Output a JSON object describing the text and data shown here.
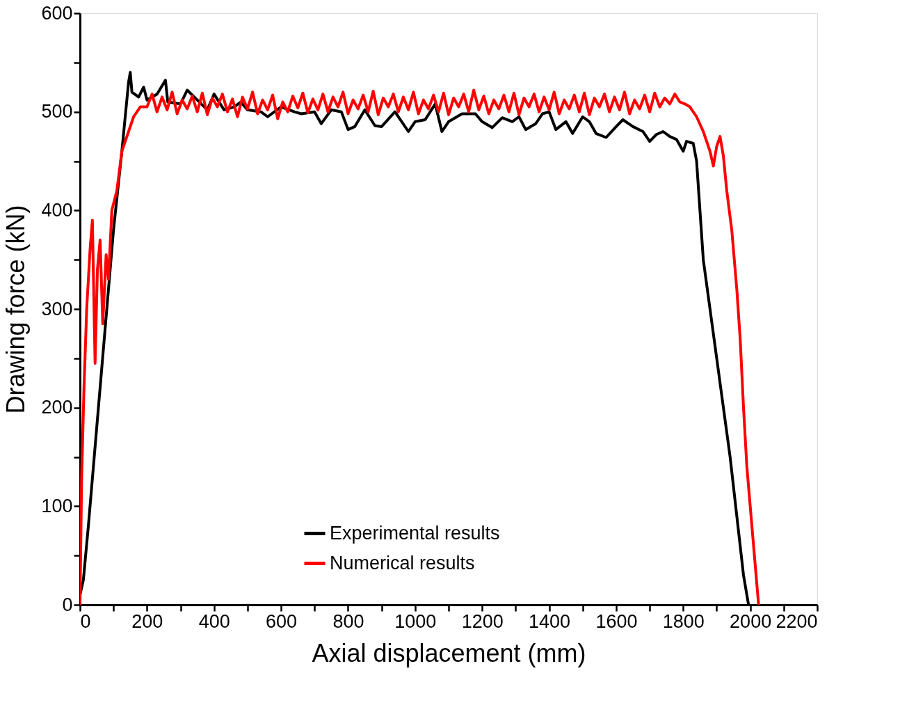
{
  "chart_data": {
    "type": "line",
    "xlabel": "Axial displacement (mm)",
    "ylabel": "Drawing force (kN)",
    "xlim": [
      0,
      2200
    ],
    "ylim": [
      0,
      600
    ],
    "xticks": [
      0,
      {
        "value": 100,
        "label": null
      },
      200,
      {
        "value": 300,
        "label": null
      },
      400,
      {
        "value": 500,
        "label": null
      },
      600,
      {
        "value": 700,
        "label": null
      },
      800,
      {
        "value": 900,
        "label": null
      },
      1000,
      {
        "value": 1100,
        "label": null
      },
      1200,
      {
        "value": 1300,
        "label": null
      },
      1400,
      {
        "value": 1500,
        "label": null
      },
      1600,
      {
        "value": 1700,
        "label": null
      },
      1800,
      {
        "value": 1900,
        "label": null
      },
      2000,
      {
        "value": 2100,
        "label": null
      },
      2200
    ],
    "yticks": [
      0,
      {
        "value": 50,
        "label": null
      },
      100,
      {
        "value": 150,
        "label": null
      },
      200,
      {
        "value": 250,
        "label": null
      },
      300,
      {
        "value": 350,
        "label": null
      },
      400,
      {
        "value": 450,
        "label": null
      },
      500,
      {
        "value": 550,
        "label": null
      },
      600
    ],
    "grid": false,
    "legend": "bottom",
    "line_style": "solid",
    "marker": "none",
    "series": [
      {
        "name": "Experimental results",
        "color": "#000000",
        "x": [
          0,
          10,
          25,
          50,
          75,
          100,
          125,
          145,
          150,
          155,
          175,
          190,
          200,
          230,
          255,
          262,
          300,
          320,
          350,
          380,
          400,
          430,
          460,
          480,
          500,
          540,
          560,
          600,
          640,
          660,
          700,
          720,
          750,
          780,
          800,
          820,
          850,
          880,
          900,
          940,
          980,
          1000,
          1030,
          1060,
          1080,
          1100,
          1140,
          1180,
          1200,
          1230,
          1260,
          1290,
          1310,
          1330,
          1360,
          1380,
          1400,
          1420,
          1450,
          1470,
          1500,
          1520,
          1540,
          1570,
          1600,
          1620,
          1650,
          1680,
          1700,
          1720,
          1740,
          1760,
          1780,
          1800,
          1810,
          1830,
          1840,
          1850,
          1860,
          1880,
          1900,
          1920,
          1940,
          1960,
          1980,
          1990,
          1995
        ],
        "values": [
          10,
          25,
          80,
          180,
          280,
          380,
          460,
          530,
          540,
          520,
          515,
          525,
          512,
          518,
          532,
          510,
          508,
          522,
          512,
          502,
          518,
          502,
          505,
          510,
          502,
          500,
          495,
          505,
          500,
          498,
          500,
          488,
          502,
          500,
          482,
          485,
          502,
          486,
          485,
          500,
          480,
          490,
          492,
          508,
          480,
          490,
          498,
          498,
          490,
          484,
          494,
          490,
          495,
          482,
          488,
          498,
          500,
          482,
          490,
          478,
          495,
          490,
          478,
          474,
          485,
          492,
          485,
          480,
          470,
          477,
          480,
          475,
          472,
          460,
          470,
          468,
          450,
          400,
          350,
          300,
          250,
          200,
          150,
          90,
          30,
          10,
          0
        ]
      },
      {
        "name": "Numerical results",
        "color": "#ff0000",
        "x": [
          0,
          5,
          12,
          20,
          30,
          37,
          45,
          52,
          60,
          68,
          78,
          85,
          95,
          110,
          125,
          145,
          160,
          180,
          200,
          215,
          230,
          245,
          260,
          275,
          290,
          305,
          320,
          335,
          350,
          365,
          380,
          395,
          410,
          425,
          440,
          455,
          470,
          485,
          500,
          515,
          530,
          545,
          560,
          575,
          590,
          605,
          620,
          635,
          650,
          665,
          680,
          695,
          710,
          725,
          740,
          755,
          770,
          785,
          800,
          815,
          830,
          845,
          860,
          875,
          890,
          905,
          920,
          935,
          950,
          965,
          980,
          995,
          1010,
          1025,
          1040,
          1055,
          1070,
          1085,
          1100,
          1115,
          1130,
          1145,
          1160,
          1175,
          1190,
          1205,
          1220,
          1235,
          1250,
          1265,
          1280,
          1295,
          1310,
          1325,
          1340,
          1355,
          1370,
          1385,
          1400,
          1415,
          1430,
          1445,
          1460,
          1475,
          1490,
          1505,
          1520,
          1535,
          1550,
          1565,
          1580,
          1595,
          1610,
          1625,
          1640,
          1655,
          1670,
          1685,
          1700,
          1715,
          1730,
          1745,
          1760,
          1775,
          1790,
          1805,
          1820,
          1840,
          1860,
          1870,
          1880,
          1890,
          1900,
          1910,
          1920,
          1930,
          1945,
          1960,
          1970,
          1980,
          1990,
          2000,
          2015,
          2025
        ],
        "values": [
          0,
          130,
          220,
          300,
          360,
          390,
          245,
          340,
          370,
          285,
          355,
          330,
          400,
          420,
          460,
          480,
          495,
          505,
          505,
          518,
          500,
          515,
          502,
          520,
          498,
          512,
          503,
          516,
          500,
          519,
          497,
          514,
          505,
          518,
          500,
          513,
          495,
          515,
          503,
          520,
          498,
          512,
          502,
          517,
          493,
          510,
          500,
          516,
          504,
          519,
          499,
          513,
          502,
          518,
          500,
          515,
          505,
          520,
          498,
          512,
          503,
          517,
          500,
          521,
          497,
          514,
          505,
          518,
          500,
          515,
          502,
          520,
          498,
          512,
          503,
          517,
          500,
          519,
          497,
          514,
          505,
          518,
          500,
          522,
          502,
          516,
          498,
          512,
          503,
          517,
          500,
          519,
          497,
          514,
          505,
          518,
          500,
          515,
          502,
          520,
          498,
          512,
          503,
          517,
          500,
          519,
          497,
          514,
          505,
          518,
          500,
          515,
          502,
          520,
          498,
          512,
          503,
          517,
          500,
          519,
          505,
          514,
          508,
          518,
          510,
          508,
          505,
          495,
          480,
          470,
          460,
          445,
          465,
          475,
          455,
          420,
          380,
          320,
          270,
          200,
          140,
          100,
          40,
          0
        ]
      }
    ]
  }
}
